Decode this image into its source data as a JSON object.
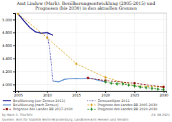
{
  "chart_data": {
    "type": "line",
    "title": "Amt Lindow (Mark): Bevölkerungsentwicklung (2005-2015) und\nPrognosen (bis 2030) in den aktuellen Grenzen",
    "annotations": [
      "by Hans S. Thurfehl",
      "Quellen: Amt für Statistik Berlin-Brandenburg, Landkreis-Amt Hessen und Vielahn",
      "23. 08 2021"
    ],
    "xlim": [
      2004.5,
      2030.5
    ],
    "xticks": [
      2005,
      2010,
      2015,
      2020,
      2025,
      2030
    ],
    "ylim": [
      3900,
      5100
    ],
    "yticks": [
      {
        "value": 4000,
        "label": "4.000"
      },
      {
        "value": 4200,
        "label": "4.200"
      },
      {
        "value": 4400,
        "label": "4.400"
      },
      {
        "value": 4600,
        "label": "4.600"
      },
      {
        "value": 4800,
        "label": "4.800"
      },
      {
        "value": 5000,
        "label": "5.000"
      }
    ],
    "grid": true,
    "legend": "bottom",
    "series": [
      {
        "name": "Bevölkerung (vor Zensus 2011)",
        "color": "#00008B",
        "line_style": "solid",
        "x": [
          2005,
          2006,
          2007,
          2008,
          2009,
          2010,
          2011
        ],
        "values": [
          5090,
          4980,
          4880,
          4810,
          4790,
          4800,
          4760
        ]
      },
      {
        "name": "Zensusellipse 2011",
        "color": "#00008B",
        "line_style": "dotted",
        "x": [
          2010,
          2010.5,
          2011
        ],
        "values": [
          4800,
          4500,
          4050
        ]
      },
      {
        "name": "Bevölkerung (nach Zensus)",
        "color": "#4f83cc",
        "line_style": "solid",
        "x": [
          2011,
          2012,
          2013,
          2014,
          2015,
          2016,
          2017,
          2018,
          2019,
          2020
        ],
        "values": [
          4050,
          4040,
          4080,
          4090,
          4095,
          4090,
          4100,
          4085,
          4060,
          4040
        ]
      },
      {
        "name": "Prognose des Landes BB 2005-2030",
        "color": "#DAA520",
        "line_style": "dashed",
        "marker": "diamond",
        "x": [
          2005,
          2010,
          2015,
          2020,
          2025,
          2030
        ],
        "values": [
          5090,
          4720,
          4320,
          4110,
          3980,
          3960
        ]
      },
      {
        "name": "Prognose des Landes BB 2017-2030",
        "color": "#8B0000",
        "line_style": "dashed",
        "marker": "square",
        "x": [
          2017,
          2020,
          2025,
          2030
        ],
        "values": [
          4100,
          4060,
          4020,
          3960
        ]
      },
      {
        "name": "Prognose des Landes BB 2020-2030",
        "color": "#228B22",
        "line_style": "dashed",
        "marker": "diamond",
        "x": [
          2020,
          2021,
          2022,
          2023,
          2024,
          2025,
          2026,
          2027,
          2028,
          2029,
          2030
        ],
        "values": [
          4040,
          4020,
          4010,
          4010,
          3990,
          3980,
          3960,
          3950,
          3940,
          3930,
          3920
        ]
      }
    ]
  }
}
